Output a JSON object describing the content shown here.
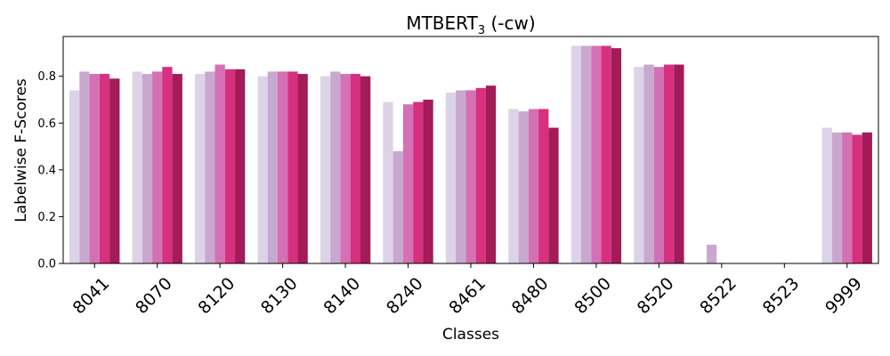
{
  "chart_data": {
    "type": "bar",
    "title": "MTBERT",
    "title_subscript": "3",
    "title_suffix": " (-cw)",
    "xlabel": "Classes",
    "ylabel": "Labelwise F-Scores",
    "ylim": [
      0,
      0.97
    ],
    "yticks": [
      0.0,
      0.2,
      0.4,
      0.6,
      0.8
    ],
    "ytick_labels": [
      "0.0",
      "0.2",
      "0.4",
      "0.6",
      "0.8"
    ],
    "grid": false,
    "legend": "none",
    "categories": [
      "8041",
      "8070",
      "8120",
      "8130",
      "8140",
      "8240",
      "8461",
      "8480",
      "8500",
      "8520",
      "8522",
      "8523",
      "9999"
    ],
    "series": [
      {
        "color": "#dcd3e8",
        "values": [
          0.74,
          0.82,
          0.81,
          0.8,
          0.8,
          0.69,
          0.73,
          0.66,
          0.93,
          0.84,
          0.0,
          0.0,
          0.58
        ]
      },
      {
        "color": "#c9a8cf",
        "values": [
          0.82,
          0.81,
          0.82,
          0.82,
          0.82,
          0.48,
          0.74,
          0.65,
          0.93,
          0.85,
          0.08,
          0.0,
          0.56
        ]
      },
      {
        "color": "#d470b4",
        "values": [
          0.81,
          0.82,
          0.85,
          0.82,
          0.81,
          0.68,
          0.74,
          0.66,
          0.93,
          0.84,
          0.0,
          0.0,
          0.56
        ]
      },
      {
        "color": "#d6307f",
        "values": [
          0.81,
          0.84,
          0.83,
          0.82,
          0.81,
          0.69,
          0.75,
          0.66,
          0.93,
          0.85,
          0.0,
          0.0,
          0.55
        ]
      },
      {
        "color": "#a31b58",
        "values": [
          0.79,
          0.81,
          0.83,
          0.81,
          0.8,
          0.7,
          0.76,
          0.58,
          0.92,
          0.85,
          0.0,
          0.0,
          0.56
        ]
      }
    ]
  }
}
